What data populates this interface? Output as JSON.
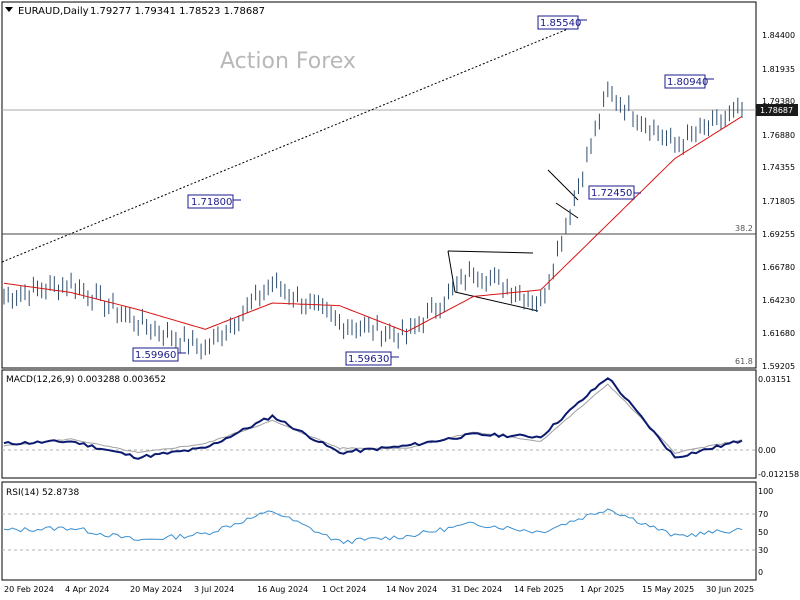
{
  "header": {
    "title": "EURAUD,Daily",
    "ohlc": "1.79277 1.79341 1.78523 1.78687",
    "watermark": "Action Forex"
  },
  "colors": {
    "candle": "#2f4f6f",
    "ma": "#d81414",
    "macd": "#0b1a6e",
    "signal": "#a0a0a0",
    "rsi": "#3a8fd0",
    "trendline": "#000000",
    "price_tag_bg": "#1a1a1a",
    "label_border": "#1a1a8c",
    "label_text": "#1a1a8c"
  },
  "panels": {
    "price": {
      "current_price_label": "1.78687",
      "fib_levels": [
        {
          "label": "38.2",
          "value": 1.6925
        },
        {
          "label": "61.8",
          "value": 1.592
        }
      ],
      "y_ticks": [
        "1.84400",
        "1.81935",
        "1.79380",
        "1.76880",
        "1.74355",
        "1.71805",
        "1.69255",
        "1.66780",
        "1.64230",
        "1.61680",
        "1.59205"
      ],
      "annotations": [
        {
          "label": "1.85540",
          "value": 1.8554
        },
        {
          "label": "1.80940",
          "value": 1.8094
        },
        {
          "label": "1.71800",
          "value": 1.718
        },
        {
          "label": "1.72450",
          "value": 1.7245
        },
        {
          "label": "1.59960",
          "value": 1.5996
        },
        {
          "label": "1.59630",
          "value": 1.5963
        }
      ]
    },
    "macd": {
      "title": "MACD(12,26,9) 0.003288 0.003652",
      "y_ticks": [
        "0.03151",
        "0.00",
        "-0.012158"
      ]
    },
    "rsi": {
      "title": "RSI(14) 52.8738",
      "y_ticks": [
        "100",
        "70",
        "50",
        "30",
        "0"
      ],
      "levels": [
        70,
        30
      ]
    }
  },
  "x_axis": {
    "labels": [
      "20 Feb 2024",
      "4 Apr 2024",
      "20 May 2024",
      "3 Jul 2024",
      "16 Aug 2024",
      "1 Oct 2024",
      "14 Nov 2024",
      "31 Dec 2024",
      "14 Feb 2025",
      "1 Apr 2025",
      "15 May 2025",
      "30 Jun 2025"
    ]
  },
  "chart_data": {
    "type": "line",
    "instrument": "EURAUD",
    "timeframe": "Daily",
    "x": [
      "20 Feb 2024",
      "4 Apr 2024",
      "20 May 2024",
      "3 Jul 2024",
      "16 Aug 2024",
      "1 Oct 2024",
      "14 Nov 2024",
      "31 Dec 2024",
      "14 Feb 2025",
      "1 Apr 2025",
      "15 May 2025",
      "30 Jun 2025"
    ],
    "price_range": [
      1.59205,
      1.8554
    ],
    "series": [
      {
        "values": [
          1.645,
          1.655,
          1.625,
          1.605,
          1.655,
          1.625,
          1.615,
          1.665,
          1.64,
          1.8,
          1.76,
          1.787
        ]
      },
      {
        "values": [
          1.655,
          1.648,
          1.635,
          1.62,
          1.64,
          1.638,
          1.618,
          1.645,
          1.65,
          1.7,
          1.75,
          1.782
        ]
      }
    ],
    "macd": {
      "range": [
        -0.012158,
        0.03151
      ],
      "series": [
        {
          "values": [
            0.002,
            0.003,
            -0.004,
            0.0,
            0.014,
            -0.002,
            0.001,
            0.006,
            0.005,
            0.031,
            -0.004,
            0.003288
          ]
        },
        {
          "values": [
            0.001,
            0.004,
            -0.002,
            0.002,
            0.012,
            0.0,
            0.0,
            0.007,
            0.003,
            0.028,
            -0.002,
            0.003652
          ]
        }
      ]
    },
    "rsi": {
      "range": [
        0,
        100
      ],
      "levels": [
        70,
        30
      ],
      "values": [
        52,
        55,
        40,
        48,
        75,
        38,
        45,
        60,
        50,
        78,
        45,
        52.87
      ]
    }
  }
}
